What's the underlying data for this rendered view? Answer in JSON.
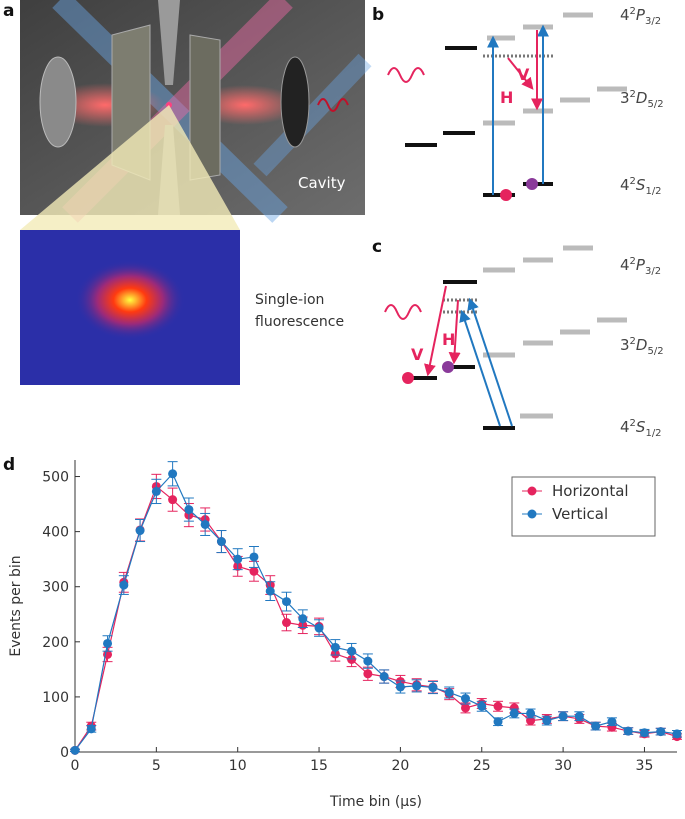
{
  "figure": {
    "panel_labels": [
      "a",
      "b",
      "c",
      "d"
    ],
    "panel_a": {
      "cavity": "Cavity",
      "fluorescence": [
        "Single-ion",
        "fluorescence"
      ]
    },
    "panel_b": {
      "levels": [
        {
          "n": "4",
          "mult": "2",
          "term": "P",
          "j": "3/2"
        },
        {
          "n": "3",
          "mult": "2",
          "term": "D",
          "j": "5/2"
        },
        {
          "n": "4",
          "mult": "2",
          "term": "S",
          "j": "1/2"
        }
      ],
      "transitions": [
        "H",
        "V"
      ]
    },
    "panel_c": {
      "levels": [
        {
          "n": "4",
          "mult": "2",
          "term": "P",
          "j": "3/2"
        },
        {
          "n": "3",
          "mult": "2",
          "term": "D",
          "j": "5/2"
        },
        {
          "n": "4",
          "mult": "2",
          "term": "S",
          "j": "1/2"
        }
      ],
      "transitions": [
        "V",
        "H"
      ]
    }
  },
  "chart_data": {
    "type": "line",
    "xlabel": "Time bin (µs)",
    "ylabel": "Events per bin",
    "x": [
      0,
      1,
      2,
      3,
      4,
      5,
      6,
      7,
      8,
      9,
      10,
      11,
      12,
      13,
      14,
      15,
      16,
      17,
      18,
      19,
      20,
      21,
      22,
      23,
      24,
      25,
      26,
      27,
      28,
      29,
      30,
      31,
      32,
      33,
      34,
      35,
      36,
      37
    ],
    "series": [
      {
        "name": "Horizontal",
        "color": "#e5245e",
        "values": [
          3,
          47,
          177,
          308,
          403,
          482,
          458,
          430,
          422,
          382,
          337,
          328,
          303,
          235,
          230,
          228,
          178,
          168,
          142,
          137,
          128,
          122,
          118,
          105,
          80,
          88,
          83,
          80,
          57,
          60,
          65,
          60,
          47,
          45,
          38,
          33,
          37,
          28
        ],
        "errors": [
          2,
          7,
          13,
          18,
          20,
          22,
          21,
          21,
          21,
          20,
          18,
          18,
          17,
          15,
          15,
          15,
          13,
          13,
          12,
          12,
          11,
          11,
          11,
          10,
          9,
          9,
          9,
          9,
          8,
          8,
          8,
          8,
          7,
          7,
          6,
          6,
          6,
          5
        ]
      },
      {
        "name": "Vertical",
        "color": "#2178c0",
        "values": [
          3,
          42,
          197,
          303,
          402,
          473,
          505,
          440,
          413,
          382,
          350,
          354,
          292,
          273,
          242,
          225,
          190,
          183,
          165,
          137,
          118,
          120,
          117,
          108,
          97,
          83,
          55,
          70,
          70,
          57,
          65,
          65,
          47,
          55,
          38,
          35,
          37,
          33
        ],
        "errors": [
          2,
          6,
          14,
          17,
          20,
          22,
          22,
          21,
          20,
          20,
          19,
          19,
          17,
          17,
          16,
          15,
          14,
          14,
          13,
          12,
          11,
          11,
          11,
          10,
          10,
          9,
          7,
          8,
          8,
          8,
          8,
          8,
          7,
          7,
          6,
          6,
          6,
          6
        ]
      }
    ],
    "xlim": [
      0,
      37
    ],
    "ylim": [
      0,
      530
    ],
    "xticks": [
      0,
      5,
      10,
      15,
      20,
      25,
      30,
      35
    ],
    "yticks": [
      0,
      100,
      200,
      300,
      400,
      500
    ],
    "legend": "upper right"
  }
}
